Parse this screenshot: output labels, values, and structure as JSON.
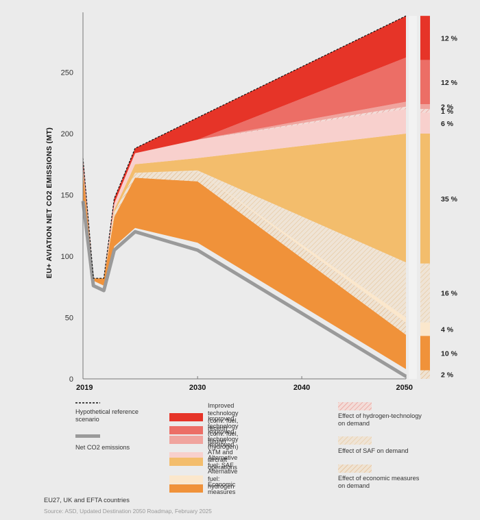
{
  "chart_data": {
    "type": "area",
    "ylabel": "EU+ AVIATION NET CO2 EMISSIONS (MT)",
    "xlabel": "",
    "xlim": [
      2019,
      2050
    ],
    "ylim": [
      0,
      300
    ],
    "x_ticks": [
      "2019",
      "2030",
      "2040",
      "2050"
    ],
    "y_ticks": [
      "0",
      "50",
      "100",
      "150",
      "200",
      "250"
    ],
    "x": [
      2019,
      2020,
      2021,
      2022,
      2024,
      2030,
      2050
    ],
    "reference_scenario": [
      180,
      82,
      82,
      147,
      188,
      213,
      296
    ],
    "net_co2_emissions": [
      145,
      76,
      72,
      105,
      120,
      105,
      2
    ],
    "series": [
      {
        "name": "Economic measures",
        "color": "#f0923a",
        "lower": [
          148,
          80,
          76,
          108,
          123,
          111,
          8
        ],
        "upper": [
          170,
          82,
          82,
          132,
          164,
          161,
          36
        ]
      },
      {
        "name": "Effect of economic measures on demand",
        "color": "#f5d9b8",
        "hatched": true,
        "lower": [
          170,
          82,
          82,
          132,
          164,
          161,
          36
        ],
        "upper": [
          171,
          82,
          82,
          134,
          168,
          169,
          46
        ]
      },
      {
        "name": "Alternative fuel: hydrogen",
        "color": "#fbe7cc",
        "lower": [
          171,
          82,
          82,
          134,
          168,
          169,
          46
        ],
        "upper": [
          171,
          82,
          82,
          134,
          168,
          169,
          50
        ]
      },
      {
        "name": "Effect of SAF on demand",
        "color": "#f4ddc2",
        "hatched": true,
        "lower": [
          171,
          82,
          82,
          134,
          168,
          169,
          50
        ],
        "upper": [
          172,
          82,
          82,
          136,
          168,
          170,
          95
        ]
      },
      {
        "name": "Alternative fuel: SAF",
        "color": "#f3bd6c",
        "lower": [
          172,
          82,
          82,
          136,
          168,
          170,
          95
        ],
        "upper": [
          173,
          82,
          82,
          138,
          175,
          180,
          200
        ]
      },
      {
        "name": "Improved ATM and aircraft operations",
        "color": "#f8d0cd",
        "lower": [
          173,
          82,
          82,
          138,
          175,
          180,
          200
        ],
        "upper": [
          174,
          82,
          82,
          143,
          184,
          195,
          220
        ]
      },
      {
        "name": "Effect of hydrogen-technology on demand",
        "color": "#f6d4cf",
        "hatched": true,
        "lower": [
          174,
          82,
          82,
          143,
          184,
          195,
          220
        ],
        "upper": [
          174,
          82,
          82,
          143,
          184,
          195,
          222
        ]
      },
      {
        "name": "Improved technology (hydrogen)",
        "color": "#f0a49e",
        "lower": [
          174,
          82,
          82,
          143,
          184,
          195,
          222
        ],
        "upper": [
          174,
          82,
          82,
          143,
          184,
          195,
          226
        ]
      },
      {
        "name": "Improved technology (conv. fuel, future)",
        "color": "#ec6e66",
        "lower": [
          174,
          82,
          82,
          143,
          184,
          195,
          226
        ],
        "upper": [
          175,
          82,
          82,
          143,
          184,
          195,
          262
        ]
      },
      {
        "name": "Improved technology (conv. fuel, recent)",
        "color": "#e63428",
        "lower": [
          175,
          82,
          82,
          143,
          184,
          195,
          262
        ],
        "upper": [
          180,
          82,
          82,
          147,
          188,
          213,
          296
        ]
      }
    ],
    "share_bar": [
      {
        "label": "12 %",
        "color": "#e63428",
        "from": 296,
        "to": 260
      },
      {
        "label": "12 %",
        "color": "#ec6e66",
        "from": 260,
        "to": 224
      },
      {
        "label": "2 %",
        "color": "#f0a49e",
        "from": 224,
        "to": 220
      },
      {
        "label": "1 %",
        "color": "#f6d4cf",
        "hatched": true,
        "from": 220,
        "to": 217
      },
      {
        "label": "6 %",
        "color": "#f8d0cd",
        "from": 217,
        "to": 200
      },
      {
        "label": "35 %",
        "color": "#f3bd6c",
        "from": 200,
        "to": 94
      },
      {
        "label": "16 %",
        "color": "#f4ddc2",
        "hatched": true,
        "from": 94,
        "to": 46
      },
      {
        "label": "4 %",
        "color": "#fbe7cc",
        "from": 46,
        "to": 35
      },
      {
        "label": "10 %",
        "color": "#f0923a",
        "from": 35,
        "to": 7
      },
      {
        "label": "2 %",
        "color": "#f5d9b8",
        "hatched": true,
        "from": 7,
        "to": 0
      }
    ]
  },
  "legend": {
    "reference": "Hypothetical reference scenario",
    "net": "Net CO2 emissions",
    "items": [
      {
        "label": "Improved technology (conv. fuel, recent)",
        "color": "#e63428"
      },
      {
        "label": "Improved technology (conv. fuel, future)",
        "color": "#ec6e66"
      },
      {
        "label": "Improved technology (hydrogen)",
        "color": "#f0a49e"
      },
      {
        "label": "Improved ATM and aircraft operations",
        "color": "#f8d0cd"
      },
      {
        "label": "Alternative fuel: SAF",
        "color": "#f3bd6c"
      },
      {
        "label": "Alternative fuel: hydrogen",
        "color": "#fbe7cc"
      },
      {
        "label": "Economic measures",
        "color": "#f0923a"
      }
    ],
    "effects": [
      {
        "label": "Effect of hydrogen-technology on demand",
        "color": "#e86a5e"
      },
      {
        "label": "Effect of SAF on demand",
        "color": "#f0b25a"
      },
      {
        "label": "Effect of economic measures on demand",
        "color": "#e9a860"
      }
    ]
  },
  "footer": {
    "region": "EU27, UK and EFTA countries",
    "source": "Source: ASD, Updated Destination 2050 Roadmap, February 2025"
  }
}
